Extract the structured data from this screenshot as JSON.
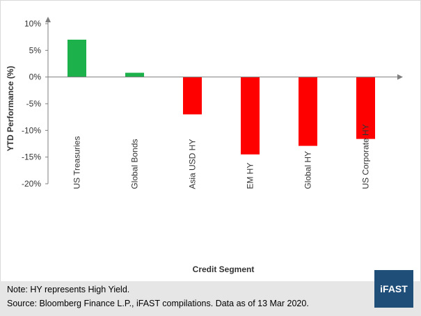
{
  "chart_data": {
    "type": "bar",
    "title": "",
    "xlabel": "Credit Segment",
    "ylabel": "YTD Performance (%)",
    "categories": [
      "US Treasuries",
      "Global Bonds",
      "Asia USD HY",
      "EM HY",
      "Global HY",
      "US Corporate HY"
    ],
    "values": [
      7.0,
      0.8,
      -7.0,
      -14.5,
      -12.9,
      -11.6
    ],
    "ylim": [
      -20,
      10
    ],
    "yticks": [
      10,
      5,
      0,
      -5,
      -10,
      -15,
      -20
    ],
    "ytick_labels": [
      "10%",
      "5%",
      "0%",
      "-5%",
      "-10%",
      "-15%",
      "-20%"
    ],
    "grid": false,
    "legend": "none",
    "colors": {
      "positive": "#1db14b",
      "negative": "#ff0000",
      "axis": "#7f7f7f"
    }
  },
  "footer": {
    "note": "Note: HY represents High Yield.",
    "source": "Source: Bloomberg Finance L.P., iFAST compilations. Data as of 13 Mar 2020."
  },
  "logo": {
    "text": "iFAST",
    "color": "#1f4e79"
  }
}
